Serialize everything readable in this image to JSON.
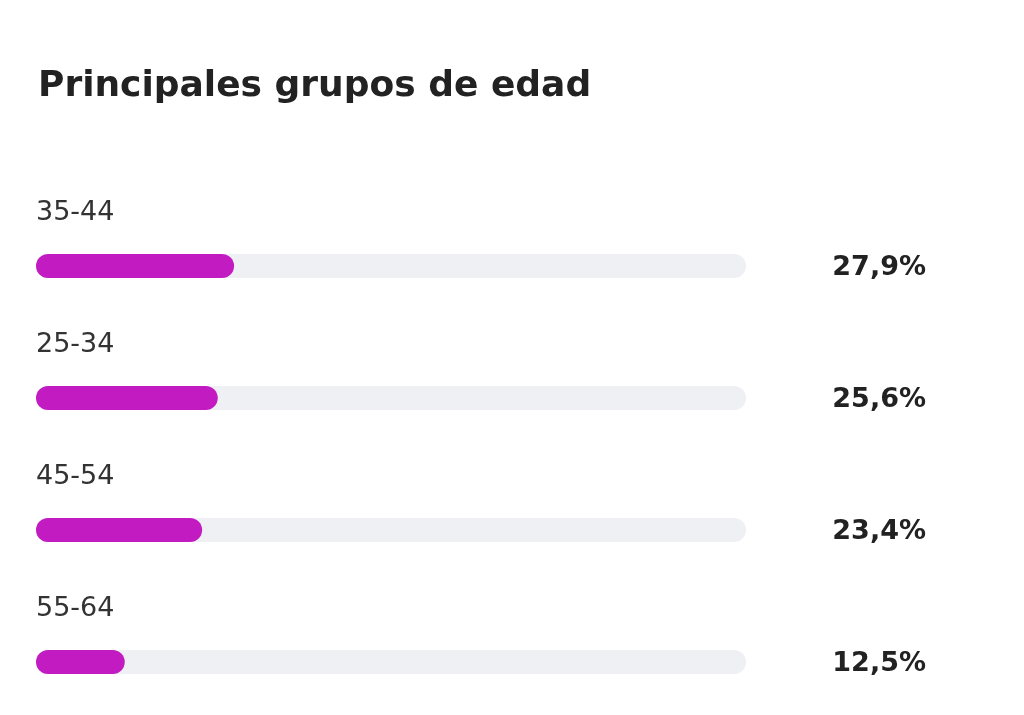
{
  "chart_data": {
    "type": "bar",
    "orientation": "horizontal",
    "title": "Principales grupos de edad",
    "categories": [
      "35-44",
      "25-34",
      "45-54",
      "55-64"
    ],
    "values": [
      27.9,
      25.6,
      23.4,
      12.5
    ],
    "value_labels": [
      "27,9%",
      "25,6%",
      "23,4%",
      "12,5%"
    ],
    "color": "#c21bc2",
    "xlim": [
      0,
      100
    ]
  }
}
